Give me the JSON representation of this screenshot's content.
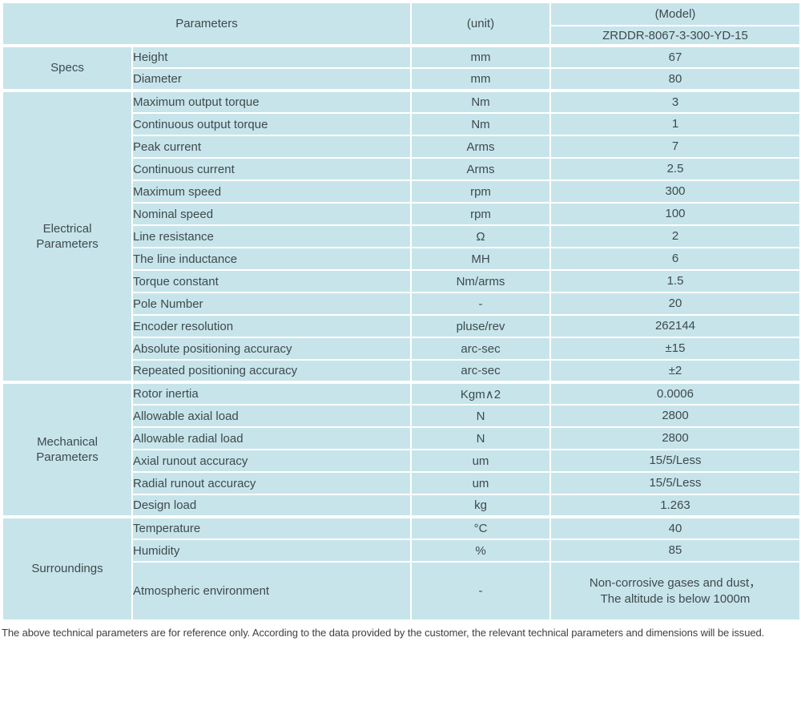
{
  "header": {
    "parameters_label": "Parameters",
    "unit_label": "(unit)",
    "model_label": "(Model)",
    "model_number": "ZRDDR-8067-3-300-YD-15"
  },
  "colors": {
    "header_bg": "#8fd3c9",
    "cell_bg": "#c7e4eb",
    "divider": "#ffffff",
    "text": "#3e4a4c"
  },
  "sections": [
    {
      "label": "Specs",
      "rows": [
        {
          "parameter": "Height",
          "unit": "mm",
          "value": "67"
        },
        {
          "parameter": "Diameter",
          "unit": "mm",
          "value": "80"
        }
      ]
    },
    {
      "label": "Electrical\nParameters",
      "rows": [
        {
          "parameter": "Maximum output torque",
          "unit": "Nm",
          "value": "3"
        },
        {
          "parameter": "Continuous output torque",
          "unit": "Nm",
          "value": "1"
        },
        {
          "parameter": "Peak current",
          "unit": "Arms",
          "value": "7"
        },
        {
          "parameter": "Continuous current",
          "unit": "Arms",
          "value": "2.5"
        },
        {
          "parameter": "Maximum speed",
          "unit": "rpm",
          "value": "300"
        },
        {
          "parameter": "Nominal speed",
          "unit": "rpm",
          "value": "100"
        },
        {
          "parameter": "Line resistance",
          "unit": "Ω",
          "value": "2"
        },
        {
          "parameter": "The line inductance",
          "unit": "MH",
          "value": "6"
        },
        {
          "parameter": "Torque constant",
          "unit": "Nm/arms",
          "value": "1.5"
        },
        {
          "parameter": "Pole Number",
          "unit": "-",
          "value": "20"
        },
        {
          "parameter": "Encoder resolution",
          "unit": "pluse/rev",
          "value": "262144"
        },
        {
          "parameter": "Absolute positioning accuracy",
          "unit": "arc-sec",
          "value": "±15"
        },
        {
          "parameter": "Repeated positioning accuracy",
          "unit": "arc-sec",
          "value": "±2"
        }
      ]
    },
    {
      "label": "Mechanical\nParameters",
      "rows": [
        {
          "parameter": "Rotor inertia",
          "unit": "Kgm∧2",
          "value": "0.0006"
        },
        {
          "parameter": "Allowable axial load",
          "unit": "N",
          "value": "2800"
        },
        {
          "parameter": "Allowable radial load",
          "unit": "N",
          "value": "2800"
        },
        {
          "parameter": "Axial runout accuracy",
          "unit": "um",
          "value": "15/5/Less"
        },
        {
          "parameter": "Radial runout accuracy",
          "unit": "um",
          "value": "15/5/Less"
        },
        {
          "parameter": "Design load",
          "unit": "kg",
          "value": "1.263"
        }
      ]
    },
    {
      "label": "Surroundings",
      "rows": [
        {
          "parameter": "Temperature",
          "unit": "°C",
          "value": "40"
        },
        {
          "parameter": "Humidity",
          "unit": "%",
          "value": "85"
        },
        {
          "parameter": "Atmospheric environment",
          "unit": "-",
          "value": "Non-corrosive gases and dust，\nThe altitude is below 1000m"
        }
      ]
    }
  ],
  "footer": {
    "note": "The above technical parameters are for reference only. According to the data provided by the customer, the relevant technical parameters and dimensions will be issued."
  }
}
